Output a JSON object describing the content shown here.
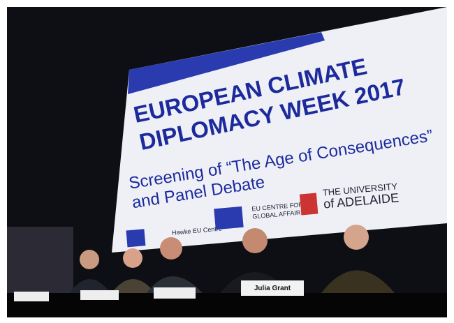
{
  "screen": {
    "title_lines": [
      "EUROPEAN CLIMATE",
      "DIPLOMACY WEEK 2017"
    ],
    "subtitle_lines": [
      "Screening of “The Age of Consequences”",
      "and Panel Debate"
    ],
    "logos": {
      "hawke": "Hawke EU Centre",
      "eu_centre": [
        "EU CENTRE FOR",
        "GLOBAL AFFAIRS"
      ],
      "university": [
        "THE UNIVERSITY",
        "of ADELAIDE"
      ]
    }
  },
  "nameplates": [
    {
      "label": "Julia Grant"
    }
  ]
}
